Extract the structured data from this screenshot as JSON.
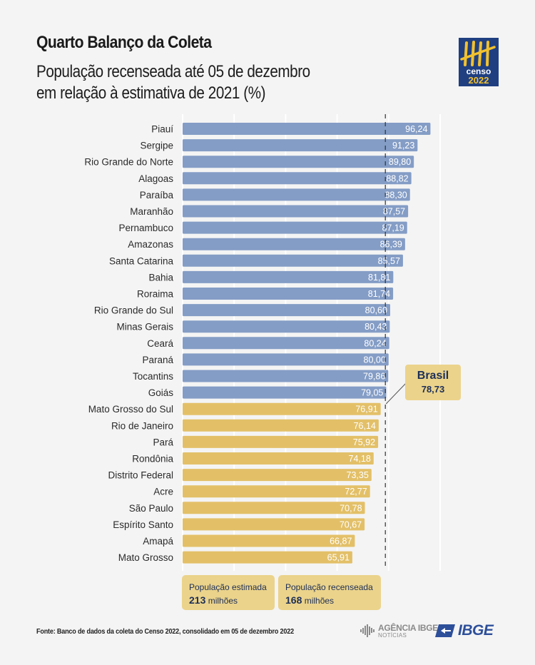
{
  "header": {
    "title": "Quarto Balanço da Coleta",
    "subtitle_line1": "População recenseada até 05 de dezembro",
    "subtitle_line2": "em relação à estimativa de 2021 (%)"
  },
  "logo": {
    "icon": "censo-2022-logo-icon",
    "word": "censo",
    "year": "2022",
    "colors": {
      "background": "#1f3f80",
      "accent": "#f2c12e"
    }
  },
  "chart_data": {
    "type": "bar",
    "orientation": "horizontal",
    "title": "População recenseada até 05 de dezembro em relação à estimativa de 2021 (%)",
    "xlabel": "",
    "ylabel": "",
    "xlim": [
      0,
      100
    ],
    "grid": true,
    "categories": [
      "Piauí",
      "Sergipe",
      "Rio Grande do Norte",
      "Alagoas",
      "Paraíba",
      "Maranhão",
      "Pernambuco",
      "Amazonas",
      "Santa Catarina",
      "Bahia",
      "Roraima",
      "Rio Grande do Sul",
      "Minas Gerais",
      "Ceará",
      "Paraná",
      "Tocantins",
      "Goiás",
      "Mato Grosso do Sul",
      "Rio de Janeiro",
      "Pará",
      "Rondônia",
      "Distrito Federal",
      "Acre",
      "São Paulo",
      "Espírito Santo",
      "Amapá",
      "Mato Grosso"
    ],
    "values": [
      96.24,
      91.23,
      89.8,
      88.82,
      88.3,
      87.57,
      87.19,
      86.39,
      85.57,
      81.81,
      81.74,
      80.6,
      80.43,
      80.24,
      80.0,
      79.86,
      79.05,
      76.91,
      76.14,
      75.92,
      74.18,
      73.35,
      72.77,
      70.78,
      70.67,
      66.87,
      65.91
    ],
    "value_labels": [
      "96,24",
      "91,23",
      "89,80",
      "88,82",
      "88,30",
      "87,57",
      "87,19",
      "86,39",
      "85,57",
      "81,81",
      "81,74",
      "80,60",
      "80,43",
      "80,24",
      "80,00",
      "79,86",
      "79,05",
      "76,91",
      "76,14",
      "75,92",
      "74,18",
      "73,35",
      "72,77",
      "70,78",
      "70,67",
      "66,87",
      "65,91"
    ],
    "reference_line": {
      "label": "Brasil",
      "value": 78.73,
      "value_label": "78,73",
      "style": "dashed"
    },
    "colors": {
      "above_reference": "#849dc6",
      "below_reference": "#e3c068",
      "gridline": "#ffffff",
      "reference_line": "#333333"
    }
  },
  "callout": {
    "name": "Brasil",
    "value": "78,73"
  },
  "summary": [
    {
      "label": "População estimada",
      "number": "213",
      "unit": "milhões"
    },
    {
      "label": "População recenseada",
      "number": "168",
      "unit": "milhões"
    }
  ],
  "footer": {
    "source": "Fonte: Banco de dados da coleta do Censo 2022, consolidado em 05 de dezembro 2022",
    "agencia_line1": "AGÊNCIA IBGE",
    "agencia_line2": "NOTÍCIAS",
    "ibge": "IBGE"
  }
}
